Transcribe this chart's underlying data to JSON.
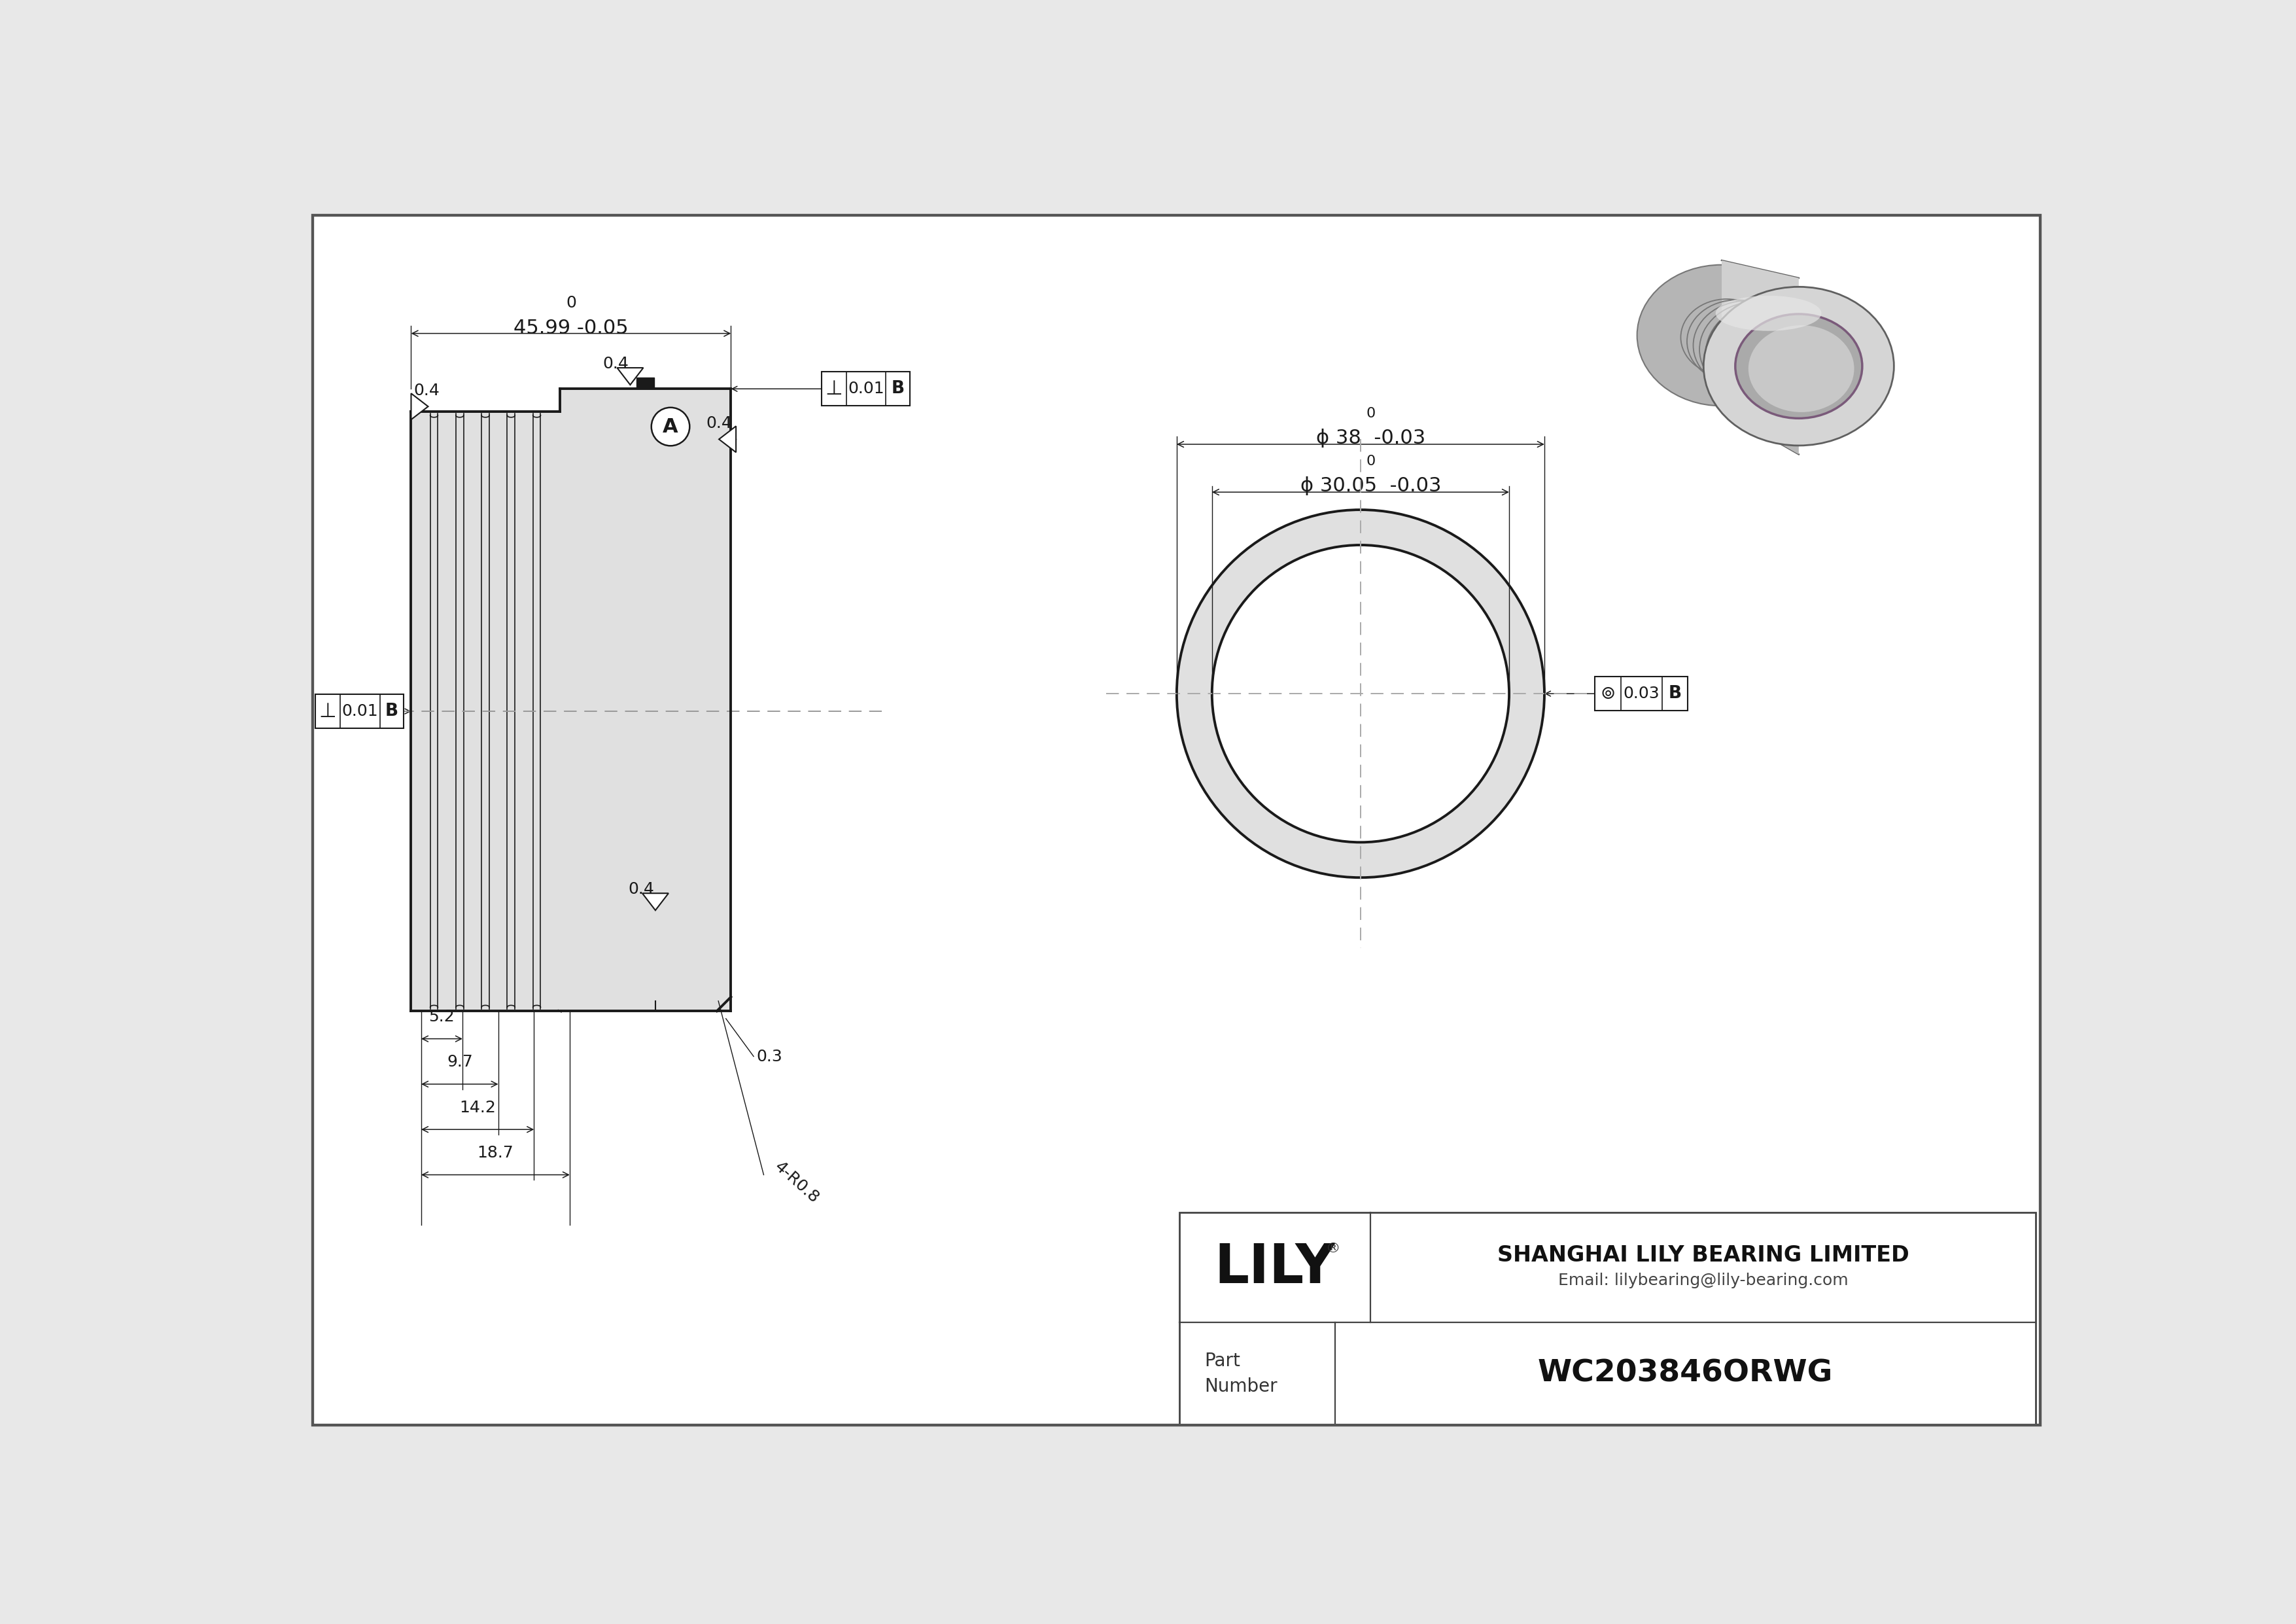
{
  "bg_color": "#e8e8e8",
  "paper_color": "#ffffff",
  "line_color": "#1a1a1a",
  "dim_color": "#1a1a1a",
  "center_line_color": "#888888",
  "company": "SHANGHAI LILY BEARING LIMITED",
  "email": "Email: lilybearing@lily-bearing.com",
  "part_label": "Part\nNumber",
  "part_number": "WC203846ORWG",
  "length_dim": "45.99",
  "outer_dia_str": "ϕ 38",
  "inner_dia_str": "ϕ 30.05",
  "perp_tol": "0.01",
  "circ_tol": "0.03",
  "tol_ref": "B",
  "dim_52": "5.2",
  "dim_97": "9.7",
  "dim_142": "14.2",
  "dim_187": "18.7",
  "dim_chamfer": "0.3",
  "dim_groove": "4-R0.8",
  "callout_A": "A",
  "roughness_val": "0.4",
  "font_size_dim": 22,
  "font_size_small": 18,
  "font_size_tol": 20,
  "font_size_pn": 34,
  "font_size_lily": 60,
  "font_size_company": 24
}
